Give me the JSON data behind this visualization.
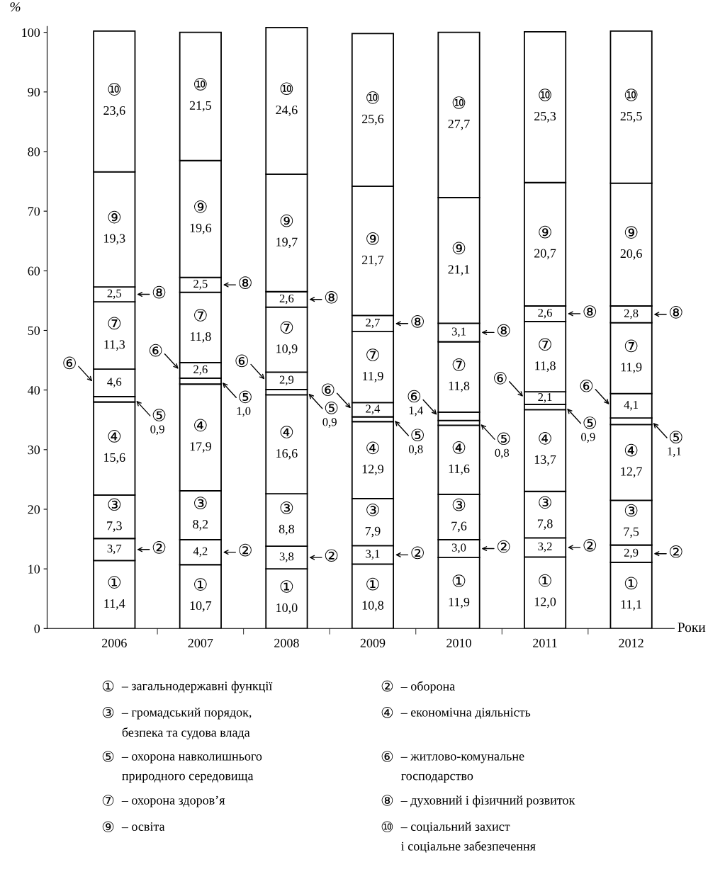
{
  "chart_data": {
    "type": "bar",
    "stacked": true,
    "ylabel": "%",
    "xlabel": "Роки",
    "ylim": [
      0,
      101
    ],
    "yticks": [
      0,
      10,
      20,
      30,
      40,
      50,
      60,
      70,
      80,
      90,
      100
    ],
    "grid": false,
    "legend": "bottom",
    "categories": [
      "2006",
      "2007",
      "2008",
      "2009",
      "2010",
      "2011",
      "2012"
    ],
    "series": [
      {
        "name": "①",
        "color": "#ffffff",
        "values": [
          11.4,
          10.7,
          10.0,
          10.8,
          11.9,
          12.0,
          11.1
        ],
        "value_labels": [
          "11,4",
          "10,7",
          "10,0",
          "10,8",
          "11,9",
          "12,0",
          "11,1"
        ]
      },
      {
        "name": "②",
        "color": "#ffffff",
        "values": [
          3.7,
          4.2,
          3.8,
          3.1,
          3.0,
          3.2,
          2.9
        ],
        "value_labels": [
          "3,7",
          "4,2",
          "3,8",
          "3,1",
          "3,0",
          "3,2",
          "2,9"
        ]
      },
      {
        "name": "③",
        "color": "#ffffff",
        "values": [
          7.3,
          8.2,
          8.8,
          7.9,
          7.6,
          7.8,
          7.5
        ],
        "value_labels": [
          "7,3",
          "8,2",
          "8,8",
          "7,9",
          "7,6",
          "7,8",
          "7,5"
        ]
      },
      {
        "name": "④",
        "color": "#ffffff",
        "values": [
          15.6,
          17.9,
          16.6,
          12.9,
          11.6,
          13.7,
          12.7
        ],
        "value_labels": [
          "15,6",
          "17,9",
          "16,6",
          "12,9",
          "11,6",
          "13,7",
          "12,7"
        ]
      },
      {
        "name": "⑤",
        "color": "#ffffff",
        "values": [
          0.9,
          1.0,
          0.9,
          0.8,
          0.8,
          0.9,
          1.1
        ],
        "value_labels": [
          "0,9",
          "1,0",
          "0,9",
          "0,8",
          "0,8",
          "0,9",
          "1,1"
        ]
      },
      {
        "name": "⑥",
        "color": "#ffffff",
        "values": [
          4.6,
          2.6,
          2.9,
          2.4,
          1.4,
          2.1,
          4.1
        ],
        "value_labels": [
          "4,6",
          "2,6",
          "2,9",
          "2,4",
          "1,4",
          "2,1",
          "4,1"
        ]
      },
      {
        "name": "⑦",
        "color": "#ffffff",
        "values": [
          11.3,
          11.8,
          10.9,
          11.9,
          11.8,
          11.8,
          11.9
        ],
        "value_labels": [
          "11,3",
          "11,8",
          "10,9",
          "11,9",
          "11,8",
          "11,8",
          "11,9"
        ]
      },
      {
        "name": "⑧",
        "color": "#ffffff",
        "values": [
          2.5,
          2.5,
          2.6,
          2.7,
          3.1,
          2.6,
          2.8
        ],
        "value_labels": [
          "2,5",
          "2,5",
          "2,6",
          "2,7",
          "3,1",
          "2,6",
          "2,8"
        ]
      },
      {
        "name": "⑨",
        "color": "#ffffff",
        "values": [
          19.3,
          19.6,
          19.7,
          21.7,
          21.1,
          20.7,
          20.6
        ],
        "value_labels": [
          "19,3",
          "19,6",
          "19,7",
          "21,7",
          "21,1",
          "20,7",
          "20,6"
        ]
      },
      {
        "name": "⑩",
        "color": "#ffffff",
        "values": [
          23.6,
          21.5,
          24.6,
          25.6,
          27.7,
          25.3,
          25.5
        ],
        "value_labels": [
          "23,6",
          "21,5",
          "24,6",
          "25,6",
          "27,7",
          "25,3",
          "25,5"
        ]
      }
    ],
    "annotations": [
      "– загальнодержавні функції",
      "– оборона",
      "– громадський порядок,\nбезпека та судова влада",
      "– економічна діяльність",
      "– охорона навколишнього\nприродного середовища",
      "– житлово-комунальне\nгосподарство",
      "– охорона здоров’я",
      "– духовний і фізичний розвиток",
      "– освіта",
      "– соціальний захист\nі соціальне забезпечення"
    ]
  }
}
